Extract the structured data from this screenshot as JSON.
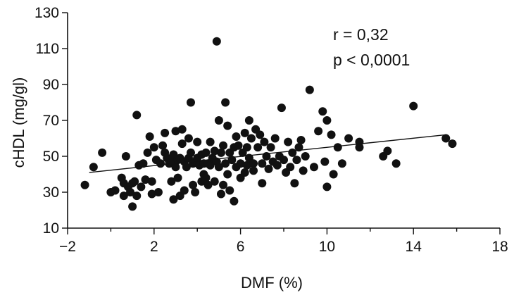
{
  "chart_data": {
    "type": "scatter",
    "xlabel": "DMF (%)",
    "ylabel": "cHDL (mg/gl)",
    "xlim": [
      -2,
      18
    ],
    "ylim": [
      10,
      130
    ],
    "xticks": [
      -2,
      2,
      6,
      10,
      14,
      18
    ],
    "yticks": [
      10,
      30,
      50,
      70,
      90,
      110,
      130
    ],
    "xtick_labels": [
      "−2",
      "2",
      "6",
      "10",
      "14",
      "18"
    ],
    "ytick_labels": [
      "10",
      "30",
      "50",
      "70",
      "90",
      "110",
      "130"
    ],
    "grid": false,
    "annotations": [
      "r = 0,32",
      "p < 0,0001"
    ],
    "trendline": {
      "x": [
        -1,
        15.5
      ],
      "y": [
        41,
        62
      ]
    },
    "points": [
      [
        -1.2,
        34
      ],
      [
        -0.8,
        44
      ],
      [
        -0.4,
        52
      ],
      [
        0.0,
        30
      ],
      [
        0.2,
        31
      ],
      [
        0.5,
        38
      ],
      [
        0.6,
        35
      ],
      [
        0.6,
        28
      ],
      [
        0.7,
        50
      ],
      [
        0.8,
        33
      ],
      [
        0.9,
        30
      ],
      [
        1.0,
        35
      ],
      [
        1.0,
        22
      ],
      [
        1.1,
        36
      ],
      [
        1.2,
        73
      ],
      [
        1.2,
        28
      ],
      [
        1.3,
        45
      ],
      [
        1.4,
        33
      ],
      [
        1.5,
        46
      ],
      [
        1.6,
        37
      ],
      [
        1.7,
        52
      ],
      [
        1.8,
        61
      ],
      [
        1.9,
        36
      ],
      [
        1.9,
        29
      ],
      [
        2.0,
        55
      ],
      [
        2.1,
        48
      ],
      [
        2.2,
        30
      ],
      [
        2.3,
        46
      ],
      [
        2.4,
        56
      ],
      [
        2.5,
        52
      ],
      [
        2.5,
        63
      ],
      [
        2.6,
        49
      ],
      [
        2.7,
        46
      ],
      [
        2.8,
        47
      ],
      [
        2.8,
        36
      ],
      [
        2.9,
        51
      ],
      [
        2.9,
        26
      ],
      [
        3.0,
        44
      ],
      [
        3.0,
        64
      ],
      [
        3.1,
        48
      ],
      [
        3.1,
        38
      ],
      [
        3.2,
        49
      ],
      [
        3.2,
        28
      ],
      [
        3.3,
        57
      ],
      [
        3.3,
        65
      ],
      [
        3.4,
        47
      ],
      [
        3.4,
        31
      ],
      [
        3.5,
        44
      ],
      [
        3.6,
        49
      ],
      [
        3.6,
        60
      ],
      [
        3.7,
        80
      ],
      [
        3.7,
        52
      ],
      [
        3.8,
        46
      ],
      [
        3.8,
        34
      ],
      [
        3.9,
        47
      ],
      [
        3.9,
        30
      ],
      [
        4.0,
        49
      ],
      [
        4.0,
        58
      ],
      [
        4.1,
        45
      ],
      [
        4.2,
        51
      ],
      [
        4.2,
        36
      ],
      [
        4.3,
        46
      ],
      [
        4.3,
        40
      ],
      [
        4.4,
        52
      ],
      [
        4.4,
        38
      ],
      [
        4.5,
        46
      ],
      [
        4.5,
        34
      ],
      [
        4.6,
        58
      ],
      [
        4.6,
        45
      ],
      [
        4.7,
        49
      ],
      [
        4.8,
        53
      ],
      [
        4.8,
        36
      ],
      [
        4.9,
        47
      ],
      [
        4.9,
        114
      ],
      [
        5.0,
        70
      ],
      [
        5.0,
        44
      ],
      [
        5.1,
        52
      ],
      [
        5.1,
        29
      ],
      [
        5.2,
        56
      ],
      [
        5.2,
        34
      ],
      [
        5.3,
        80
      ],
      [
        5.3,
        46
      ],
      [
        5.4,
        67
      ],
      [
        5.4,
        40
      ],
      [
        5.5,
        52
      ],
      [
        5.5,
        31
      ],
      [
        5.6,
        48
      ],
      [
        5.7,
        55
      ],
      [
        5.7,
        25
      ],
      [
        5.8,
        44
      ],
      [
        5.8,
        61
      ],
      [
        5.9,
        56
      ],
      [
        6.0,
        46
      ],
      [
        6.0,
        38
      ],
      [
        6.1,
        52
      ],
      [
        6.2,
        41
      ],
      [
        6.2,
        63
      ],
      [
        6.3,
        45
      ],
      [
        6.3,
        55
      ],
      [
        6.4,
        70
      ],
      [
        6.4,
        49
      ],
      [
        6.5,
        60
      ],
      [
        6.6,
        46
      ],
      [
        6.6,
        42
      ],
      [
        6.7,
        65
      ],
      [
        6.8,
        55
      ],
      [
        6.9,
        62
      ],
      [
        7.0,
        46
      ],
      [
        7.0,
        35
      ],
      [
        7.1,
        58
      ],
      [
        7.2,
        50
      ],
      [
        7.3,
        43
      ],
      [
        7.4,
        55
      ],
      [
        7.5,
        47
      ],
      [
        7.6,
        60
      ],
      [
        7.7,
        45
      ],
      [
        7.8,
        50
      ],
      [
        7.9,
        77
      ],
      [
        8.0,
        48
      ],
      [
        8.1,
        41
      ],
      [
        8.2,
        58
      ],
      [
        8.3,
        44
      ],
      [
        8.4,
        52
      ],
      [
        8.5,
        35
      ],
      [
        8.6,
        48
      ],
      [
        8.7,
        55
      ],
      [
        8.8,
        59
      ],
      [
        8.9,
        42
      ],
      [
        9.0,
        50
      ],
      [
        9.2,
        87
      ],
      [
        9.4,
        44
      ],
      [
        9.6,
        64
      ],
      [
        9.8,
        75
      ],
      [
        9.9,
        47
      ],
      [
        10.0,
        70
      ],
      [
        10.0,
        33
      ],
      [
        10.2,
        62
      ],
      [
        10.3,
        40
      ],
      [
        10.5,
        55
      ],
      [
        10.7,
        46
      ],
      [
        11.0,
        60
      ],
      [
        11.5,
        58
      ],
      [
        11.5,
        55
      ],
      [
        12.6,
        50
      ],
      [
        12.8,
        53
      ],
      [
        13.2,
        46
      ],
      [
        14.0,
        78
      ],
      [
        15.5,
        60
      ],
      [
        15.8,
        57
      ]
    ]
  }
}
